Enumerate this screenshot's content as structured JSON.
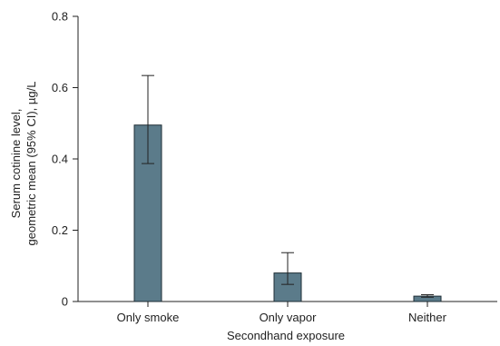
{
  "chart_data": {
    "type": "bar",
    "title": "",
    "xlabel": "Secondhand exposure",
    "ylabel_lines": [
      "Serum cotinine level,",
      "geometric mean (95% CI), µg/L"
    ],
    "categories": [
      "Only smoke",
      "Only vapor",
      "Neither"
    ],
    "series": [
      {
        "values": [
          0.495,
          0.08,
          0.015
        ],
        "ci_lower": [
          0.387,
          0.048,
          0.012
        ],
        "ci_upper": [
          0.634,
          0.137,
          0.019
        ]
      }
    ],
    "ylim": [
      0,
      0.8
    ],
    "yticks": [
      0,
      0.2,
      0.4,
      0.6,
      0.8
    ],
    "ytick_labels": [
      "0",
      "0.2",
      "0.4",
      "0.6",
      "0.8"
    ],
    "grid": false,
    "bar_color": "#5b7b8a",
    "bar_edge_color": "#1e2d35"
  }
}
